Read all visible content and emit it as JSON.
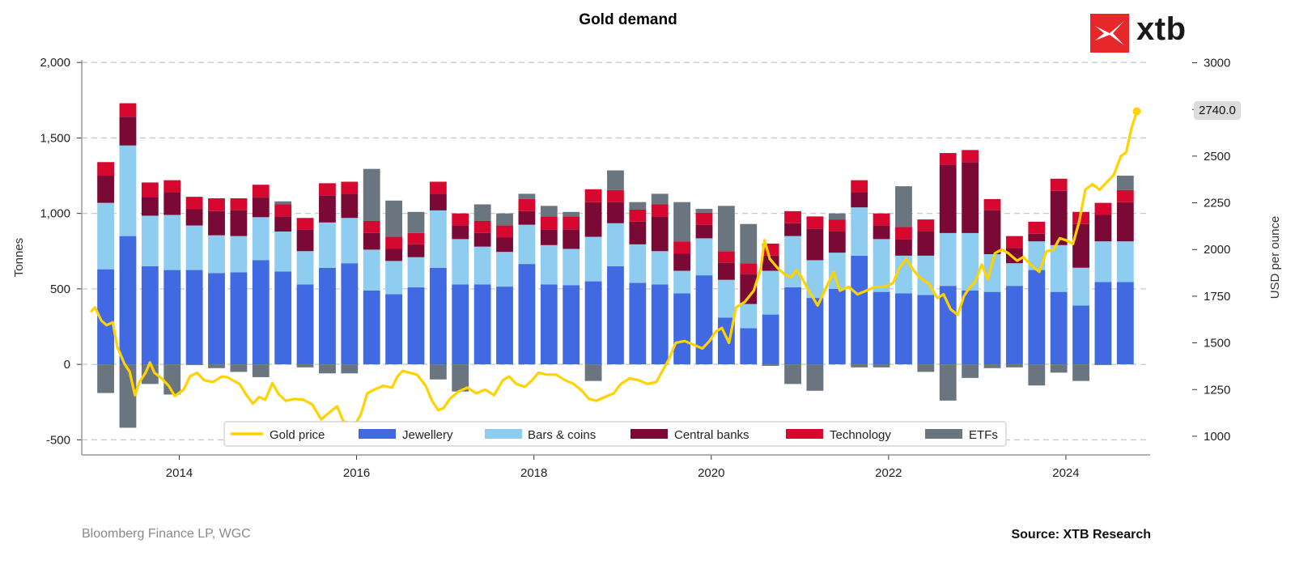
{
  "brand": {
    "name": "xtb",
    "accent": "#e8272b"
  },
  "footer": {
    "left": "Bloomberg Finance LP, WGC",
    "right": "Source: XTB Research"
  },
  "price_badge": "2740.0",
  "chart_data": {
    "type": "bar",
    "stacked": true,
    "title": "Gold demand",
    "ylabel": "Tonnes",
    "y2label": "USD per ounce",
    "ylim": [
      -600,
      2060
    ],
    "y2lim": [
      900,
      3050
    ],
    "yticks": [
      {
        "v": -500,
        "label": "-500"
      },
      {
        "v": 0,
        "label": "0"
      },
      {
        "v": 500,
        "label": "500"
      },
      {
        "v": 1000,
        "label": "1,000"
      },
      {
        "v": 1500,
        "label": "1,500"
      },
      {
        "v": 2000,
        "label": "2,000"
      }
    ],
    "y2ticks": [
      {
        "v": 1000,
        "label": "1000"
      },
      {
        "v": 1250,
        "label": "1250"
      },
      {
        "v": 1500,
        "label": "1500"
      },
      {
        "v": 1750,
        "label": "1750"
      },
      {
        "v": 2000,
        "label": "2000"
      },
      {
        "v": 2250,
        "label": "2250"
      },
      {
        "v": 2500,
        "label": "2500"
      },
      {
        "v": 2750,
        "label": "2750"
      },
      {
        "v": 3000,
        "label": "3000"
      }
    ],
    "xlim": [
      2012.9,
      2024.95
    ],
    "xticks": [
      {
        "v": 2014,
        "label": "2014"
      },
      {
        "v": 2016,
        "label": "2016"
      },
      {
        "v": 2018,
        "label": "2018"
      },
      {
        "v": 2020,
        "label": "2020"
      },
      {
        "v": 2022,
        "label": "2022"
      },
      {
        "v": 2024,
        "label": "2024"
      }
    ],
    "categories": [
      "2013Q1",
      "2013Q2",
      "2013Q3",
      "2013Q4",
      "2014Q1",
      "2014Q2",
      "2014Q3",
      "2014Q4",
      "2015Q1",
      "2015Q2",
      "2015Q3",
      "2015Q4",
      "2016Q1",
      "2016Q2",
      "2016Q3",
      "2016Q4",
      "2017Q1",
      "2017Q2",
      "2017Q3",
      "2017Q4",
      "2018Q1",
      "2018Q2",
      "2018Q3",
      "2018Q4",
      "2019Q1",
      "2019Q2",
      "2019Q3",
      "2019Q4",
      "2020Q1",
      "2020Q2",
      "2020Q3",
      "2020Q4",
      "2021Q1",
      "2021Q2",
      "2021Q3",
      "2021Q4",
      "2022Q1",
      "2022Q2",
      "2022Q3",
      "2022Q4",
      "2023Q1",
      "2023Q2",
      "2023Q3",
      "2023Q4",
      "2024Q1",
      "2024Q2",
      "2024Q3"
    ],
    "x": [
      2013.17,
      2013.42,
      2013.67,
      2013.92,
      2014.17,
      2014.42,
      2014.67,
      2014.92,
      2015.17,
      2015.42,
      2015.67,
      2015.92,
      2016.17,
      2016.42,
      2016.67,
      2016.92,
      2017.17,
      2017.42,
      2017.67,
      2017.92,
      2018.17,
      2018.42,
      2018.67,
      2018.92,
      2019.17,
      2019.42,
      2019.67,
      2019.92,
      2020.17,
      2020.42,
      2020.67,
      2020.92,
      2021.17,
      2021.42,
      2021.67,
      2021.92,
      2022.17,
      2022.42,
      2022.67,
      2022.92,
      2023.17,
      2023.42,
      2023.67,
      2023.92,
      2024.17,
      2024.42,
      2024.67
    ],
    "series": [
      {
        "name": "Jewellery",
        "color": "#4169e1",
        "values": [
          630,
          850,
          650,
          625,
          625,
          605,
          610,
          690,
          615,
          530,
          640,
          670,
          490,
          465,
          510,
          640,
          530,
          530,
          515,
          665,
          530,
          525,
          550,
          650,
          540,
          530,
          470,
          590,
          310,
          240,
          330,
          510,
          440,
          500,
          720,
          480,
          470,
          460,
          520,
          490,
          480,
          520,
          625,
          480,
          390,
          545,
          545
        ]
      },
      {
        "name": "Bars & coins",
        "color": "#8ecdf0",
        "values": [
          440,
          600,
          335,
          365,
          295,
          250,
          240,
          285,
          265,
          220,
          300,
          300,
          270,
          220,
          200,
          380,
          300,
          250,
          230,
          260,
          260,
          240,
          295,
          285,
          255,
          220,
          150,
          245,
          250,
          160,
          290,
          340,
          250,
          240,
          320,
          350,
          250,
          260,
          350,
          380,
          250,
          150,
          190,
          310,
          250,
          270,
          270
        ]
      },
      {
        "name": "Central banks",
        "color": "#7a0a35",
        "values": [
          180,
          190,
          125,
          150,
          110,
          160,
          170,
          130,
          100,
          145,
          180,
          160,
          110,
          80,
          85,
          110,
          90,
          90,
          95,
          90,
          105,
          130,
          230,
          140,
          150,
          230,
          115,
          90,
          115,
          200,
          100,
          85,
          210,
          140,
          100,
          90,
          110,
          160,
          450,
          470,
          290,
          100,
          50,
          360,
          290,
          175,
          260
        ]
      },
      {
        "name": "Technology",
        "color": "#d6082f",
        "values": [
          90,
          90,
          95,
          80,
          80,
          85,
          80,
          85,
          80,
          75,
          80,
          80,
          80,
          80,
          75,
          80,
          80,
          80,
          80,
          80,
          85,
          85,
          85,
          80,
          80,
          80,
          80,
          80,
          75,
          70,
          80,
          80,
          80,
          80,
          80,
          80,
          80,
          80,
          80,
          80,
          75,
          80,
          80,
          80,
          80,
          80,
          80
        ]
      },
      {
        "name": "ETFs",
        "color": "#6b7580",
        "values": [
          -190,
          -420,
          -130,
          -200,
          -5,
          -25,
          -50,
          -85,
          20,
          -20,
          -60,
          -60,
          345,
          240,
          140,
          -100,
          -180,
          110,
          80,
          35,
          70,
          30,
          -110,
          130,
          50,
          70,
          260,
          25,
          300,
          260,
          -10,
          -130,
          -175,
          40,
          -20,
          -20,
          270,
          -50,
          -240,
          -90,
          -25,
          -20,
          -140,
          -55,
          -110,
          -5,
          95
        ]
      }
    ],
    "line": {
      "name": "Gold price",
      "color": "#ffd200",
      "axis": "right",
      "points": [
        [
          2013.0,
          1665
        ],
        [
          2013.05,
          1690
        ],
        [
          2013.12,
          1620
        ],
        [
          2013.18,
          1595
        ],
        [
          2013.25,
          1610
        ],
        [
          2013.3,
          1480
        ],
        [
          2013.38,
          1390
        ],
        [
          2013.44,
          1345
        ],
        [
          2013.5,
          1220
        ],
        [
          2013.55,
          1290
        ],
        [
          2013.62,
          1340
        ],
        [
          2013.67,
          1395
        ],
        [
          2013.72,
          1340
        ],
        [
          2013.8,
          1310
        ],
        [
          2013.88,
          1270
        ],
        [
          2013.95,
          1215
        ],
        [
          2014.05,
          1250
        ],
        [
          2014.12,
          1320
        ],
        [
          2014.2,
          1340
        ],
        [
          2014.28,
          1300
        ],
        [
          2014.38,
          1290
        ],
        [
          2014.48,
          1320
        ],
        [
          2014.55,
          1315
        ],
        [
          2014.6,
          1300
        ],
        [
          2014.68,
          1280
        ],
        [
          2014.75,
          1225
        ],
        [
          2014.83,
          1175
        ],
        [
          2014.9,
          1210
        ],
        [
          2014.97,
          1195
        ],
        [
          2015.05,
          1285
        ],
        [
          2015.12,
          1225
        ],
        [
          2015.2,
          1190
        ],
        [
          2015.3,
          1200
        ],
        [
          2015.4,
          1195
        ],
        [
          2015.5,
          1170
        ],
        [
          2015.55,
          1130
        ],
        [
          2015.6,
          1090
        ],
        [
          2015.7,
          1130
        ],
        [
          2015.78,
          1160
        ],
        [
          2015.85,
          1080
        ],
        [
          2015.92,
          1070
        ],
        [
          2015.98,
          1060
        ],
        [
          2016.05,
          1120
        ],
        [
          2016.12,
          1230
        ],
        [
          2016.2,
          1250
        ],
        [
          2016.3,
          1270
        ],
        [
          2016.4,
          1260
        ],
        [
          2016.46,
          1320
        ],
        [
          2016.52,
          1350
        ],
        [
          2016.6,
          1340
        ],
        [
          2016.68,
          1330
        ],
        [
          2016.78,
          1270
        ],
        [
          2016.85,
          1190
        ],
        [
          2016.92,
          1140
        ],
        [
          2016.98,
          1150
        ],
        [
          2017.05,
          1200
        ],
        [
          2017.15,
          1240
        ],
        [
          2017.25,
          1260
        ],
        [
          2017.35,
          1230
        ],
        [
          2017.45,
          1250
        ],
        [
          2017.55,
          1220
        ],
        [
          2017.65,
          1300
        ],
        [
          2017.72,
          1320
        ],
        [
          2017.8,
          1280
        ],
        [
          2017.9,
          1265
        ],
        [
          2017.98,
          1300
        ],
        [
          2018.05,
          1340
        ],
        [
          2018.15,
          1330
        ],
        [
          2018.25,
          1330
        ],
        [
          2018.35,
          1300
        ],
        [
          2018.45,
          1280
        ],
        [
          2018.55,
          1240
        ],
        [
          2018.62,
          1200
        ],
        [
          2018.7,
          1190
        ],
        [
          2018.8,
          1210
        ],
        [
          2018.9,
          1230
        ],
        [
          2018.98,
          1280
        ],
        [
          2019.08,
          1310
        ],
        [
          2019.18,
          1300
        ],
        [
          2019.28,
          1280
        ],
        [
          2019.38,
          1290
        ],
        [
          2019.45,
          1350
        ],
        [
          2019.52,
          1410
        ],
        [
          2019.6,
          1500
        ],
        [
          2019.7,
          1510
        ],
        [
          2019.8,
          1490
        ],
        [
          2019.9,
          1470
        ],
        [
          2019.98,
          1510
        ],
        [
          2020.05,
          1560
        ],
        [
          2020.12,
          1580
        ],
        [
          2020.2,
          1500
        ],
        [
          2020.28,
          1690
        ],
        [
          2020.38,
          1720
        ],
        [
          2020.48,
          1780
        ],
        [
          2020.56,
          1900
        ],
        [
          2020.6,
          2050
        ],
        [
          2020.66,
          1950
        ],
        [
          2020.75,
          1900
        ],
        [
          2020.82,
          1870
        ],
        [
          2020.9,
          1850
        ],
        [
          2020.96,
          1890
        ],
        [
          2021.02,
          1850
        ],
        [
          2021.1,
          1780
        ],
        [
          2021.2,
          1700
        ],
        [
          2021.28,
          1780
        ],
        [
          2021.38,
          1880
        ],
        [
          2021.45,
          1780
        ],
        [
          2021.55,
          1800
        ],
        [
          2021.65,
          1760
        ],
        [
          2021.75,
          1780
        ],
        [
          2021.85,
          1800
        ],
        [
          2021.95,
          1800
        ],
        [
          2022.05,
          1820
        ],
        [
          2022.12,
          1900
        ],
        [
          2022.2,
          1950
        ],
        [
          2022.28,
          1890
        ],
        [
          2022.35,
          1850
        ],
        [
          2022.45,
          1820
        ],
        [
          2022.55,
          1740
        ],
        [
          2022.62,
          1760
        ],
        [
          2022.7,
          1680
        ],
        [
          2022.78,
          1650
        ],
        [
          2022.85,
          1750
        ],
        [
          2022.92,
          1800
        ],
        [
          2022.98,
          1830
        ],
        [
          2023.05,
          1920
        ],
        [
          2023.12,
          1840
        ],
        [
          2023.2,
          1980
        ],
        [
          2023.28,
          2000
        ],
        [
          2023.35,
          1980
        ],
        [
          2023.45,
          1940
        ],
        [
          2023.52,
          1960
        ],
        [
          2023.6,
          1920
        ],
        [
          2023.7,
          1880
        ],
        [
          2023.78,
          1990
        ],
        [
          2023.86,
          2000
        ],
        [
          2023.93,
          2060
        ],
        [
          2024.0,
          2050
        ],
        [
          2024.08,
          2030
        ],
        [
          2024.15,
          2150
        ],
        [
          2024.22,
          2320
        ],
        [
          2024.3,
          2350
        ],
        [
          2024.38,
          2320
        ],
        [
          2024.46,
          2360
        ],
        [
          2024.54,
          2400
        ],
        [
          2024.62,
          2500
        ],
        [
          2024.68,
          2520
        ],
        [
          2024.74,
          2650
        ],
        [
          2024.8,
          2740
        ]
      ]
    },
    "legend": {
      "position": "bottom-center",
      "items": [
        {
          "label": "Gold price",
          "kind": "line",
          "color": "#ffd200"
        },
        {
          "label": "Jewellery",
          "kind": "box",
          "color": "#4169e1"
        },
        {
          "label": "Bars & coins",
          "kind": "box",
          "color": "#8ecdf0"
        },
        {
          "label": "Central banks",
          "kind": "box",
          "color": "#7a0a35"
        },
        {
          "label": "Technology",
          "kind": "box",
          "color": "#d6082f"
        },
        {
          "label": "ETFs",
          "kind": "box",
          "color": "#6b7580"
        }
      ]
    }
  }
}
